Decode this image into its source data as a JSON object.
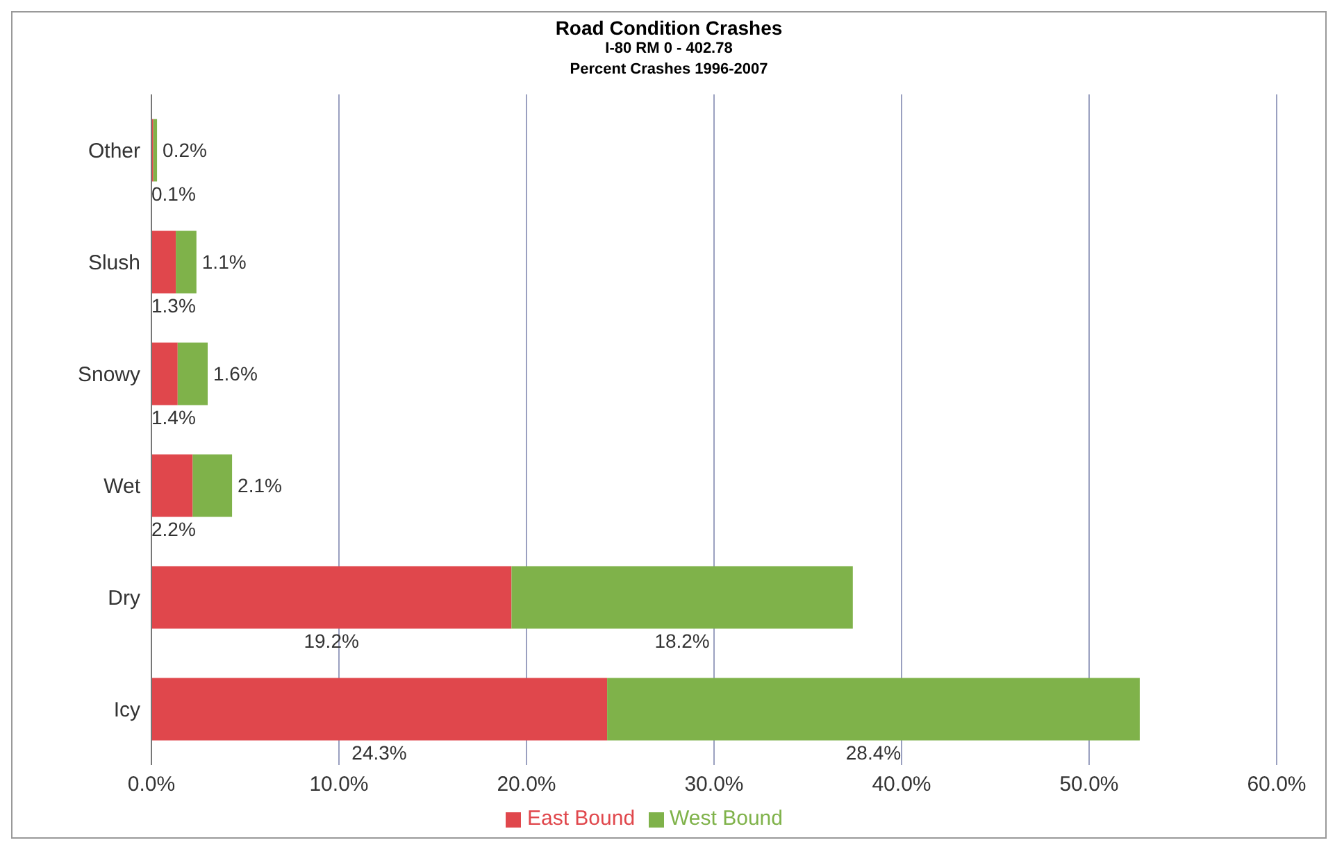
{
  "chart_data": {
    "type": "bar",
    "orientation": "horizontal",
    "stacked": true,
    "title": "Road Condition Crashes",
    "subtitle": "I-80 RM 0 - 402.78\nPercent Crashes 1996-2007",
    "categories": [
      "Other",
      "Slush",
      "Snowy",
      "Wet",
      "Dry",
      "Icy"
    ],
    "series": [
      {
        "name": "East Bound",
        "color": "#e0474c",
        "values": [
          0.1,
          1.3,
          1.4,
          2.2,
          19.2,
          24.3
        ],
        "value_labels": [
          "0.1%",
          "1.3%",
          "1.4%",
          "2.2%",
          "19.2%",
          "24.3%"
        ]
      },
      {
        "name": "West Bound",
        "color": "#7fb24a",
        "values": [
          0.2,
          1.1,
          1.6,
          2.1,
          18.2,
          28.4
        ],
        "value_labels": [
          "0.2%",
          "1.1%",
          "1.6%",
          "2.1%",
          "18.2%",
          "28.4%"
        ]
      }
    ],
    "xlim": [
      0,
      60
    ],
    "xticks": [
      {
        "value": 0,
        "label": "0.0%"
      },
      {
        "value": 10,
        "label": "10.0%"
      },
      {
        "value": 20,
        "label": "20.0%"
      },
      {
        "value": 30,
        "label": "30.0%"
      },
      {
        "value": 40,
        "label": "40.0%"
      },
      {
        "value": 50,
        "label": "50.0%"
      },
      {
        "value": 60,
        "label": "60.0%"
      }
    ],
    "grid": "x",
    "legend": "bottom"
  }
}
